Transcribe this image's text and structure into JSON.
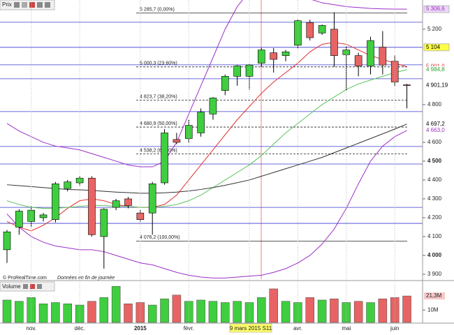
{
  "chart_data": {
    "type": "candlestick",
    "title": "Prix",
    "categories": [
      null,
      null,
      "nov.",
      null,
      null,
      null,
      "déc.",
      null,
      null,
      null,
      null,
      "2015",
      null,
      null,
      null,
      "févr.",
      null,
      null,
      null,
      null,
      "9 mars 2015 S11",
      null,
      null,
      null,
      "avr.",
      null,
      null,
      null,
      "mai",
      null,
      null,
      null,
      "juin",
      null
    ],
    "cursor": 20,
    "open": [
      4030,
      4150,
      4180,
      4200,
      4190,
      4355,
      4385,
      4410,
      4100,
      4255,
      4300,
      4225,
      4225,
      4385,
      4615,
      4620,
      4650,
      4750,
      4875,
      4950,
      4950,
      5020,
      5075,
      5060,
      5115,
      5235,
      5180,
      5200,
      5065,
      5060,
      5005,
      5105,
      5030,
      4905
    ],
    "high": [
      4135,
      4245,
      4260,
      4225,
      4390,
      4400,
      4420,
      4420,
      4250,
      4300,
      4310,
      4240,
      4390,
      4670,
      4650,
      4720,
      4780,
      4840,
      4960,
      5010,
      5015,
      5100,
      5100,
      5090,
      5250,
      5250,
      5225,
      5290,
      5110,
      5075,
      5160,
      5190,
      5060,
      4910
    ],
    "low": [
      3960,
      4110,
      4150,
      4180,
      4175,
      4340,
      4370,
      4100,
      3930,
      4240,
      4250,
      4180,
      4110,
      4375,
      4590,
      4600,
      4630,
      4720,
      4850,
      4900,
      4880,
      5000,
      4970,
      5030,
      5100,
      5140,
      5170,
      5000,
      4875,
      4950,
      4960,
      4960,
      4900,
      4780
    ],
    "close": [
      4125,
      4235,
      4240,
      4215,
      4380,
      4390,
      4410,
      4110,
      4245,
      4290,
      4265,
      4190,
      4380,
      4650,
      4600,
      4690,
      4760,
      4835,
      4950,
      5005,
      5010,
      5090,
      5040,
      5080,
      5245,
      5155,
      5220,
      5060,
      5090,
      5005,
      5140,
      5010,
      4920,
      4901.19
    ],
    "up_color": "#3fce3f",
    "down_color": "#e86464",
    "ylim": [
      3874,
      5355
    ],
    "yticks": [
      {
        "value": 3900,
        "label": "3 900"
      },
      {
        "value": 4000,
        "label": "4 000"
      },
      {
        "value": 4100,
        "label": "4 100"
      },
      {
        "value": 4200,
        "label": "4 200"
      },
      {
        "value": 4300,
        "label": "4 300"
      },
      {
        "value": 4400,
        "label": "4 400"
      },
      {
        "value": 4500,
        "label": "4 500"
      },
      {
        "value": 4600,
        "label": "4 600"
      },
      {
        "value": 4800,
        "label": "4 800"
      },
      {
        "value": 5200,
        "label": "5 200"
      }
    ],
    "indicators": [
      {
        "color": "#9b30c8",
        "values": [
          4700,
          4660,
          4630,
          4600,
          4580,
          4570,
          4560,
          4540,
          4520,
          4500,
          4480,
          4470,
          4470,
          4500,
          4600,
          4750,
          4900,
          5050,
          5200,
          5320,
          5400,
          5420,
          5420,
          5400,
          5380,
          5360,
          5340,
          5330,
          5320,
          5315,
          5310,
          5308,
          5307,
          5306.6
        ]
      },
      {
        "color": "#9b30c8",
        "values": [
          4220,
          4150,
          4100,
          4070,
          4050,
          4040,
          4030,
          4030,
          4020,
          4000,
          3980,
          3960,
          3950,
          3930,
          3910,
          3895,
          3885,
          3880,
          3880,
          3885,
          3890,
          3895,
          3910,
          3930,
          3960,
          4000,
          4060,
          4140,
          4250,
          4380,
          4500,
          4580,
          4630,
          4663
        ]
      },
      {
        "color": "#e03030",
        "values": [
          4180,
          4150,
          4130,
          4160,
          4200,
          4250,
          4290,
          4300,
          4290,
          4270,
          4260,
          4255,
          4255,
          4270,
          4320,
          4400,
          4480,
          4560,
          4640,
          4720,
          4790,
          4860,
          4920,
          4970,
          5020,
          5080,
          5120,
          5130,
          5120,
          5090,
          5060,
          5040,
          5020,
          5001
        ]
      },
      {
        "color": "#5cc25c",
        "values": [
          4290,
          4270,
          4255,
          4250,
          4250,
          4255,
          4260,
          4265,
          4265,
          4260,
          4260,
          4255,
          4255,
          4260,
          4270,
          4290,
          4320,
          4360,
          4400,
          4440,
          4480,
          4530,
          4590,
          4650,
          4700,
          4750,
          4800,
          4840,
          4880,
          4910,
          4930,
          4950,
          4970,
          4984.8
        ]
      },
      {
        "color": "#333333",
        "values": [
          4375,
          4370,
          4365,
          4360,
          4355,
          4350,
          4348,
          4345,
          4340,
          4336,
          4333,
          4330,
          4330,
          4332,
          4336,
          4342,
          4350,
          4360,
          4372,
          4386,
          4400,
          4420,
          4440,
          4460,
          4480,
          4500,
          4520,
          4545,
          4570,
          4595,
          4620,
          4645,
          4670,
          4697.2
        ]
      }
    ],
    "levels": [
      5237,
      5104,
      5011,
      4937,
      4763,
      4578,
      4485,
      4255,
      4170
    ],
    "level_color": "#3a3ad0",
    "fibonacci": [
      {
        "value": 5285.7,
        "label": "5 285,7 (0,00%)"
      },
      {
        "value": 5000.3,
        "label": "5 000,3 (23,60%)"
      },
      {
        "value": 4823.7,
        "label": "4 823,7 (38,20%)"
      },
      {
        "value": 4680.9,
        "label": "4 680,9 (50,00%)"
      },
      {
        "value": 4538.2,
        "label": "4 538,2 (61,80%)"
      },
      {
        "value": 4076.2,
        "label": "4 076,2 (100,00%)"
      }
    ],
    "badges": [
      {
        "value": 5306.6,
        "label": "5 306,6",
        "color": "#9b30c8",
        "bg": "#ecd8f6"
      },
      {
        "value": 5104,
        "label": "5 104",
        "color": "#000000",
        "bg": "#ffff44"
      },
      {
        "value": 5001.0,
        "label": "5 001,0",
        "color": "#e03030",
        "bg": "#ffffff"
      },
      {
        "value": 4984.8,
        "label": "4 984,8",
        "color": "#2f9e2f",
        "bg": "#ffffff"
      },
      {
        "value": 4901.19,
        "label": "4 901,19",
        "color": "#000000",
        "bg": "#ffffff"
      },
      {
        "value": 4697.2,
        "label": "4 697,2",
        "color": "#000000",
        "bg": "#ffffff"
      },
      {
        "value": 4663.0,
        "label": "4 663,0",
        "color": "#9b30c8",
        "bg": "#ffffff"
      }
    ],
    "footnote": "© ProRealTime.com",
    "footnote2": "Données en fin de journée",
    "volume": {
      "title": "Volume",
      "values": [
        18,
        17,
        20,
        15,
        16,
        15,
        14,
        17,
        20,
        29,
        15,
        16,
        14,
        19,
        22,
        17,
        18,
        17,
        16,
        17,
        16,
        20,
        27,
        17,
        16,
        20,
        18,
        19,
        16,
        17,
        16,
        19,
        20,
        21.3
      ],
      "ylim": [
        0,
        32
      ],
      "yticks": [
        {
          "value": 10,
          "label": "10M"
        }
      ],
      "last_label": "21,3M"
    }
  }
}
